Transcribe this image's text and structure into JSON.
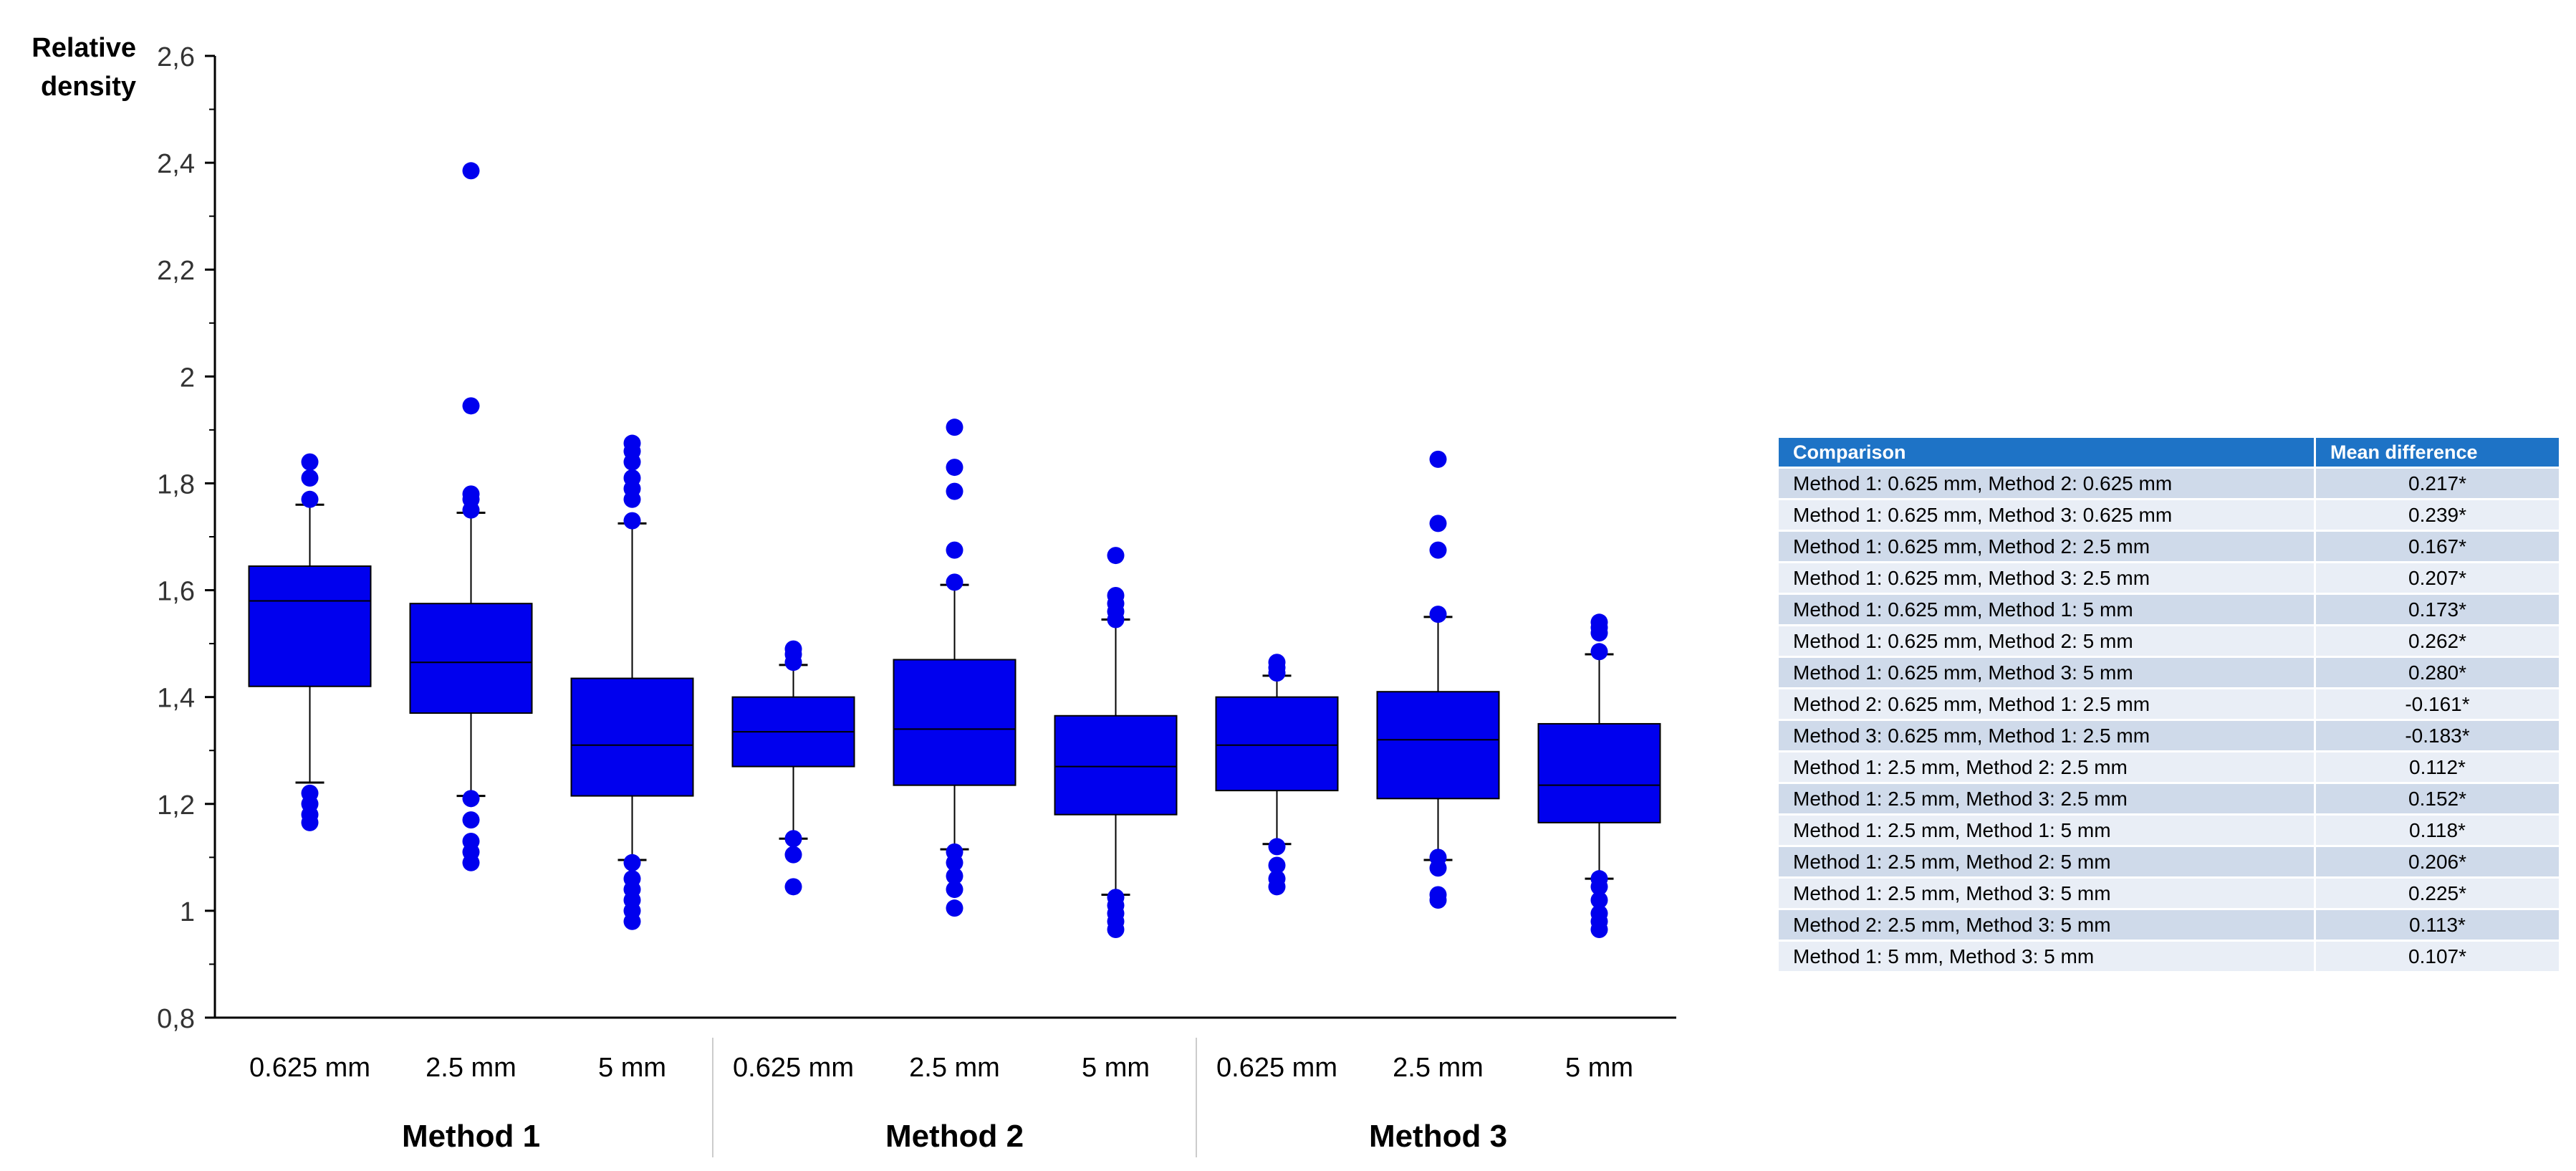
{
  "chart_data": {
    "type": "box",
    "ylabel_lines": [
      "Relative",
      "density"
    ],
    "ylim": [
      0.8,
      2.6
    ],
    "yticks": [
      "0,8",
      "1",
      "1,2",
      "1,4",
      "1,6",
      "1,8",
      "2",
      "2,2",
      "2,4",
      "2,6"
    ],
    "ytick_values": [
      0.8,
      1.0,
      1.2,
      1.4,
      1.6,
      1.8,
      2.0,
      2.2,
      2.4,
      2.6
    ],
    "groups": [
      "Method 1",
      "Method 2",
      "Method 3"
    ],
    "box_color": "#0000ee",
    "boxes": [
      {
        "group": "Method 1",
        "label": "0.625 mm",
        "whisker_low": 1.24,
        "q1": 1.42,
        "median": 1.58,
        "q3": 1.645,
        "whisker_high": 1.76,
        "outliers": [
          1.165,
          1.18,
          1.2,
          1.22,
          1.77,
          1.81,
          1.84
        ]
      },
      {
        "group": "Method 1",
        "label": "2.5 mm",
        "whisker_low": 1.215,
        "q1": 1.37,
        "median": 1.465,
        "q3": 1.575,
        "whisker_high": 1.745,
        "outliers": [
          1.09,
          1.11,
          1.13,
          1.17,
          1.21,
          1.75,
          1.77,
          1.78,
          1.945,
          2.385
        ]
      },
      {
        "group": "Method 1",
        "label": "5 mm",
        "whisker_low": 1.095,
        "q1": 1.215,
        "median": 1.31,
        "q3": 1.435,
        "whisker_high": 1.725,
        "outliers": [
          0.98,
          1.0,
          1.02,
          1.04,
          1.06,
          1.09,
          1.73,
          1.77,
          1.79,
          1.81,
          1.84,
          1.86,
          1.875
        ]
      },
      {
        "group": "Method 2",
        "label": "0.625 mm",
        "whisker_low": 1.135,
        "q1": 1.27,
        "median": 1.335,
        "q3": 1.4,
        "whisker_high": 1.46,
        "outliers": [
          1.045,
          1.105,
          1.135,
          1.465,
          1.48,
          1.49
        ]
      },
      {
        "group": "Method 2",
        "label": "2.5 mm",
        "whisker_low": 1.115,
        "q1": 1.235,
        "median": 1.34,
        "q3": 1.47,
        "whisker_high": 1.61,
        "outliers": [
          1.005,
          1.04,
          1.065,
          1.09,
          1.11,
          1.615,
          1.675,
          1.785,
          1.83,
          1.905
        ]
      },
      {
        "group": "Method 2",
        "label": "5 mm",
        "whisker_low": 1.03,
        "q1": 1.18,
        "median": 1.27,
        "q3": 1.365,
        "whisker_high": 1.545,
        "outliers": [
          0.965,
          0.98,
          0.995,
          1.01,
          1.025,
          1.545,
          1.56,
          1.575,
          1.59,
          1.665
        ]
      },
      {
        "group": "Method 3",
        "label": "0.625 mm",
        "whisker_low": 1.125,
        "q1": 1.225,
        "median": 1.31,
        "q3": 1.4,
        "whisker_high": 1.44,
        "outliers": [
          1.045,
          1.06,
          1.085,
          1.12,
          1.445,
          1.455,
          1.465
        ]
      },
      {
        "group": "Method 3",
        "label": "2.5 mm",
        "whisker_low": 1.095,
        "q1": 1.21,
        "median": 1.32,
        "q3": 1.41,
        "whisker_high": 1.55,
        "outliers": [
          1.02,
          1.03,
          1.08,
          1.1,
          1.555,
          1.675,
          1.725,
          1.845
        ]
      },
      {
        "group": "Method 3",
        "label": "5 mm",
        "whisker_low": 1.06,
        "q1": 1.165,
        "median": 1.235,
        "q3": 1.35,
        "whisker_high": 1.48,
        "outliers": [
          0.965,
          0.98,
          0.995,
          1.02,
          1.045,
          1.06,
          1.485,
          1.52,
          1.53,
          1.54
        ]
      }
    ]
  },
  "table": {
    "headers": [
      "Comparison",
      "Mean difference"
    ],
    "rows": [
      [
        "Method 1: 0.625 mm, Method 2: 0.625 mm",
        "0.217*"
      ],
      [
        "Method 1: 0.625 mm, Method 3: 0.625 mm",
        "0.239*"
      ],
      [
        "Method 1: 0.625 mm, Method 2: 2.5 mm",
        "0.167*"
      ],
      [
        "Method 1: 0.625 mm, Method 3: 2.5 mm",
        "0.207*"
      ],
      [
        "Method 1: 0.625 mm, Method 1: 5 mm",
        "0.173*"
      ],
      [
        "Method 1: 0.625 mm, Method 2: 5 mm",
        "0.262*"
      ],
      [
        "Method 1: 0.625 mm, Method 3: 5 mm",
        "0.280*"
      ],
      [
        "Method 2: 0.625 mm, Method 1: 2.5 mm",
        "-0.161*"
      ],
      [
        "Method 3: 0.625 mm, Method 1: 2.5 mm",
        "-0.183*"
      ],
      [
        "Method 1: 2.5 mm, Method 2: 2.5 mm",
        "0.112*"
      ],
      [
        "Method 1: 2.5 mm, Method 3: 2.5 mm",
        "0.152*"
      ],
      [
        "Method 1: 2.5 mm, Method 1: 5 mm",
        "0.118*"
      ],
      [
        "Method 1: 2.5 mm, Method 2: 5 mm",
        "0.206*"
      ],
      [
        "Method 1: 2.5 mm, Method 3: 5 mm",
        "0.225*"
      ],
      [
        "Method 2: 2.5 mm, Method 3: 5 mm",
        "0.113*"
      ],
      [
        "Method 1: 5 mm, Method 3: 5 mm",
        "0.107*"
      ]
    ]
  }
}
